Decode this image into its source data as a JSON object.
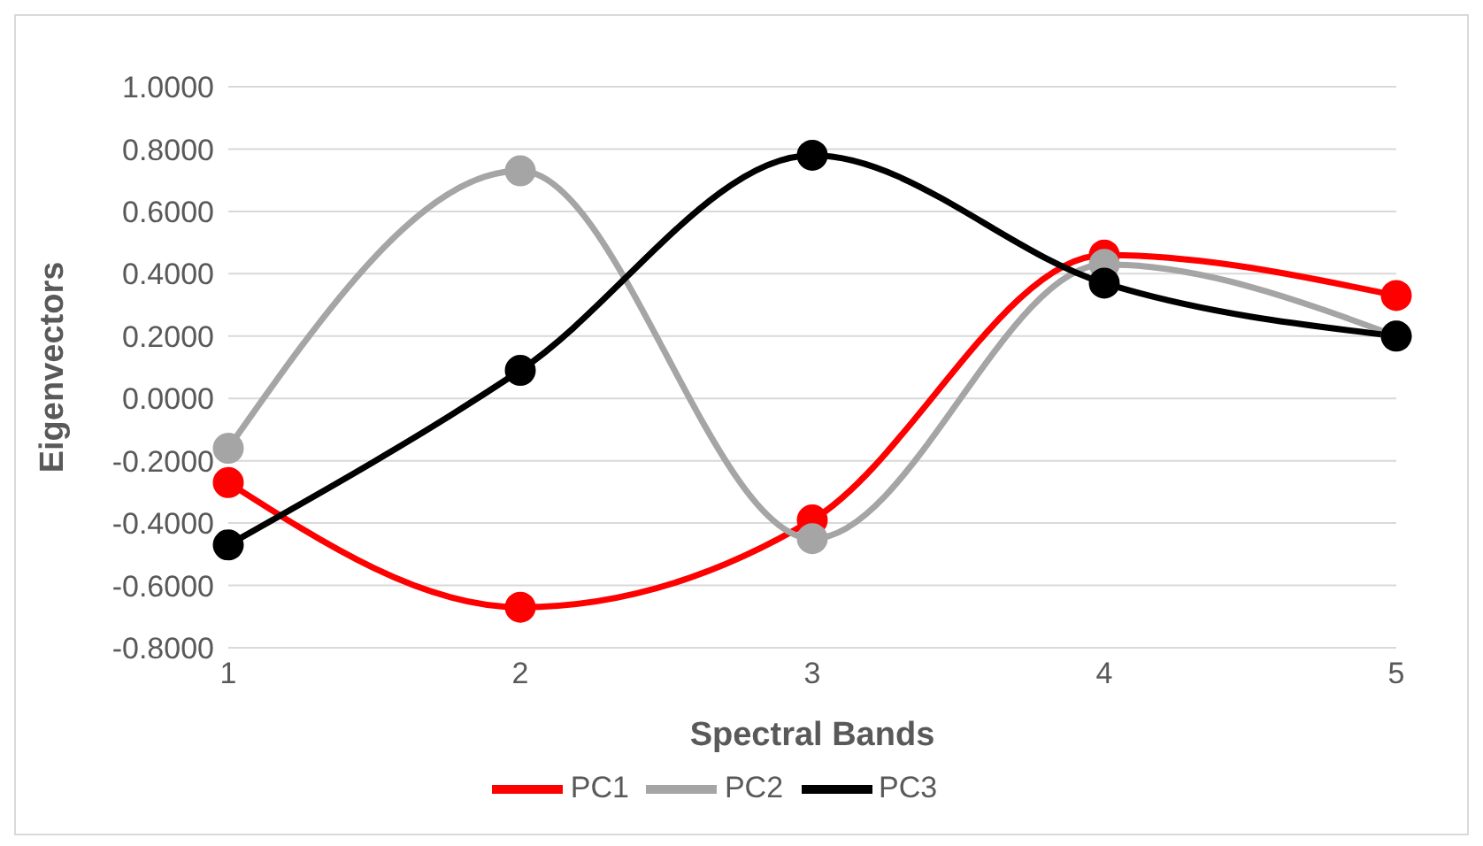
{
  "chart_data": {
    "type": "line",
    "xlabel": "Spectral Bands",
    "ylabel": "Eigenvectors",
    "categories": [
      "1",
      "2",
      "3",
      "4",
      "5"
    ],
    "series": [
      {
        "name": "PC1",
        "color": "#ff0000",
        "values": [
          -0.27,
          -0.67,
          -0.39,
          0.46,
          0.33
        ]
      },
      {
        "name": "PC2",
        "color": "#a5a5a5",
        "values": [
          -0.16,
          0.73,
          -0.45,
          0.43,
          0.2
        ]
      },
      {
        "name": "PC3",
        "color": "#000000",
        "values": [
          -0.47,
          0.09,
          0.78,
          0.37,
          0.2
        ]
      }
    ],
    "ylim": [
      -0.8,
      1.0
    ],
    "yticks": [
      {
        "value": -0.8,
        "label": "-0.8000"
      },
      {
        "value": -0.6,
        "label": "-0.6000"
      },
      {
        "value": -0.4,
        "label": "-0.4000"
      },
      {
        "value": -0.2,
        "label": "-0.2000"
      },
      {
        "value": 0,
        "label": "0.0000"
      },
      {
        "value": 0.2,
        "label": "0.2000"
      },
      {
        "value": 0.4,
        "label": "0.4000"
      },
      {
        "value": 0.6,
        "label": "0.6000"
      },
      {
        "value": 0.8,
        "label": "0.8000"
      },
      {
        "value": 1.0,
        "label": "1.0000"
      }
    ],
    "grid": "y",
    "legend": "bottom",
    "marker": "circle",
    "line_style": "solid"
  }
}
